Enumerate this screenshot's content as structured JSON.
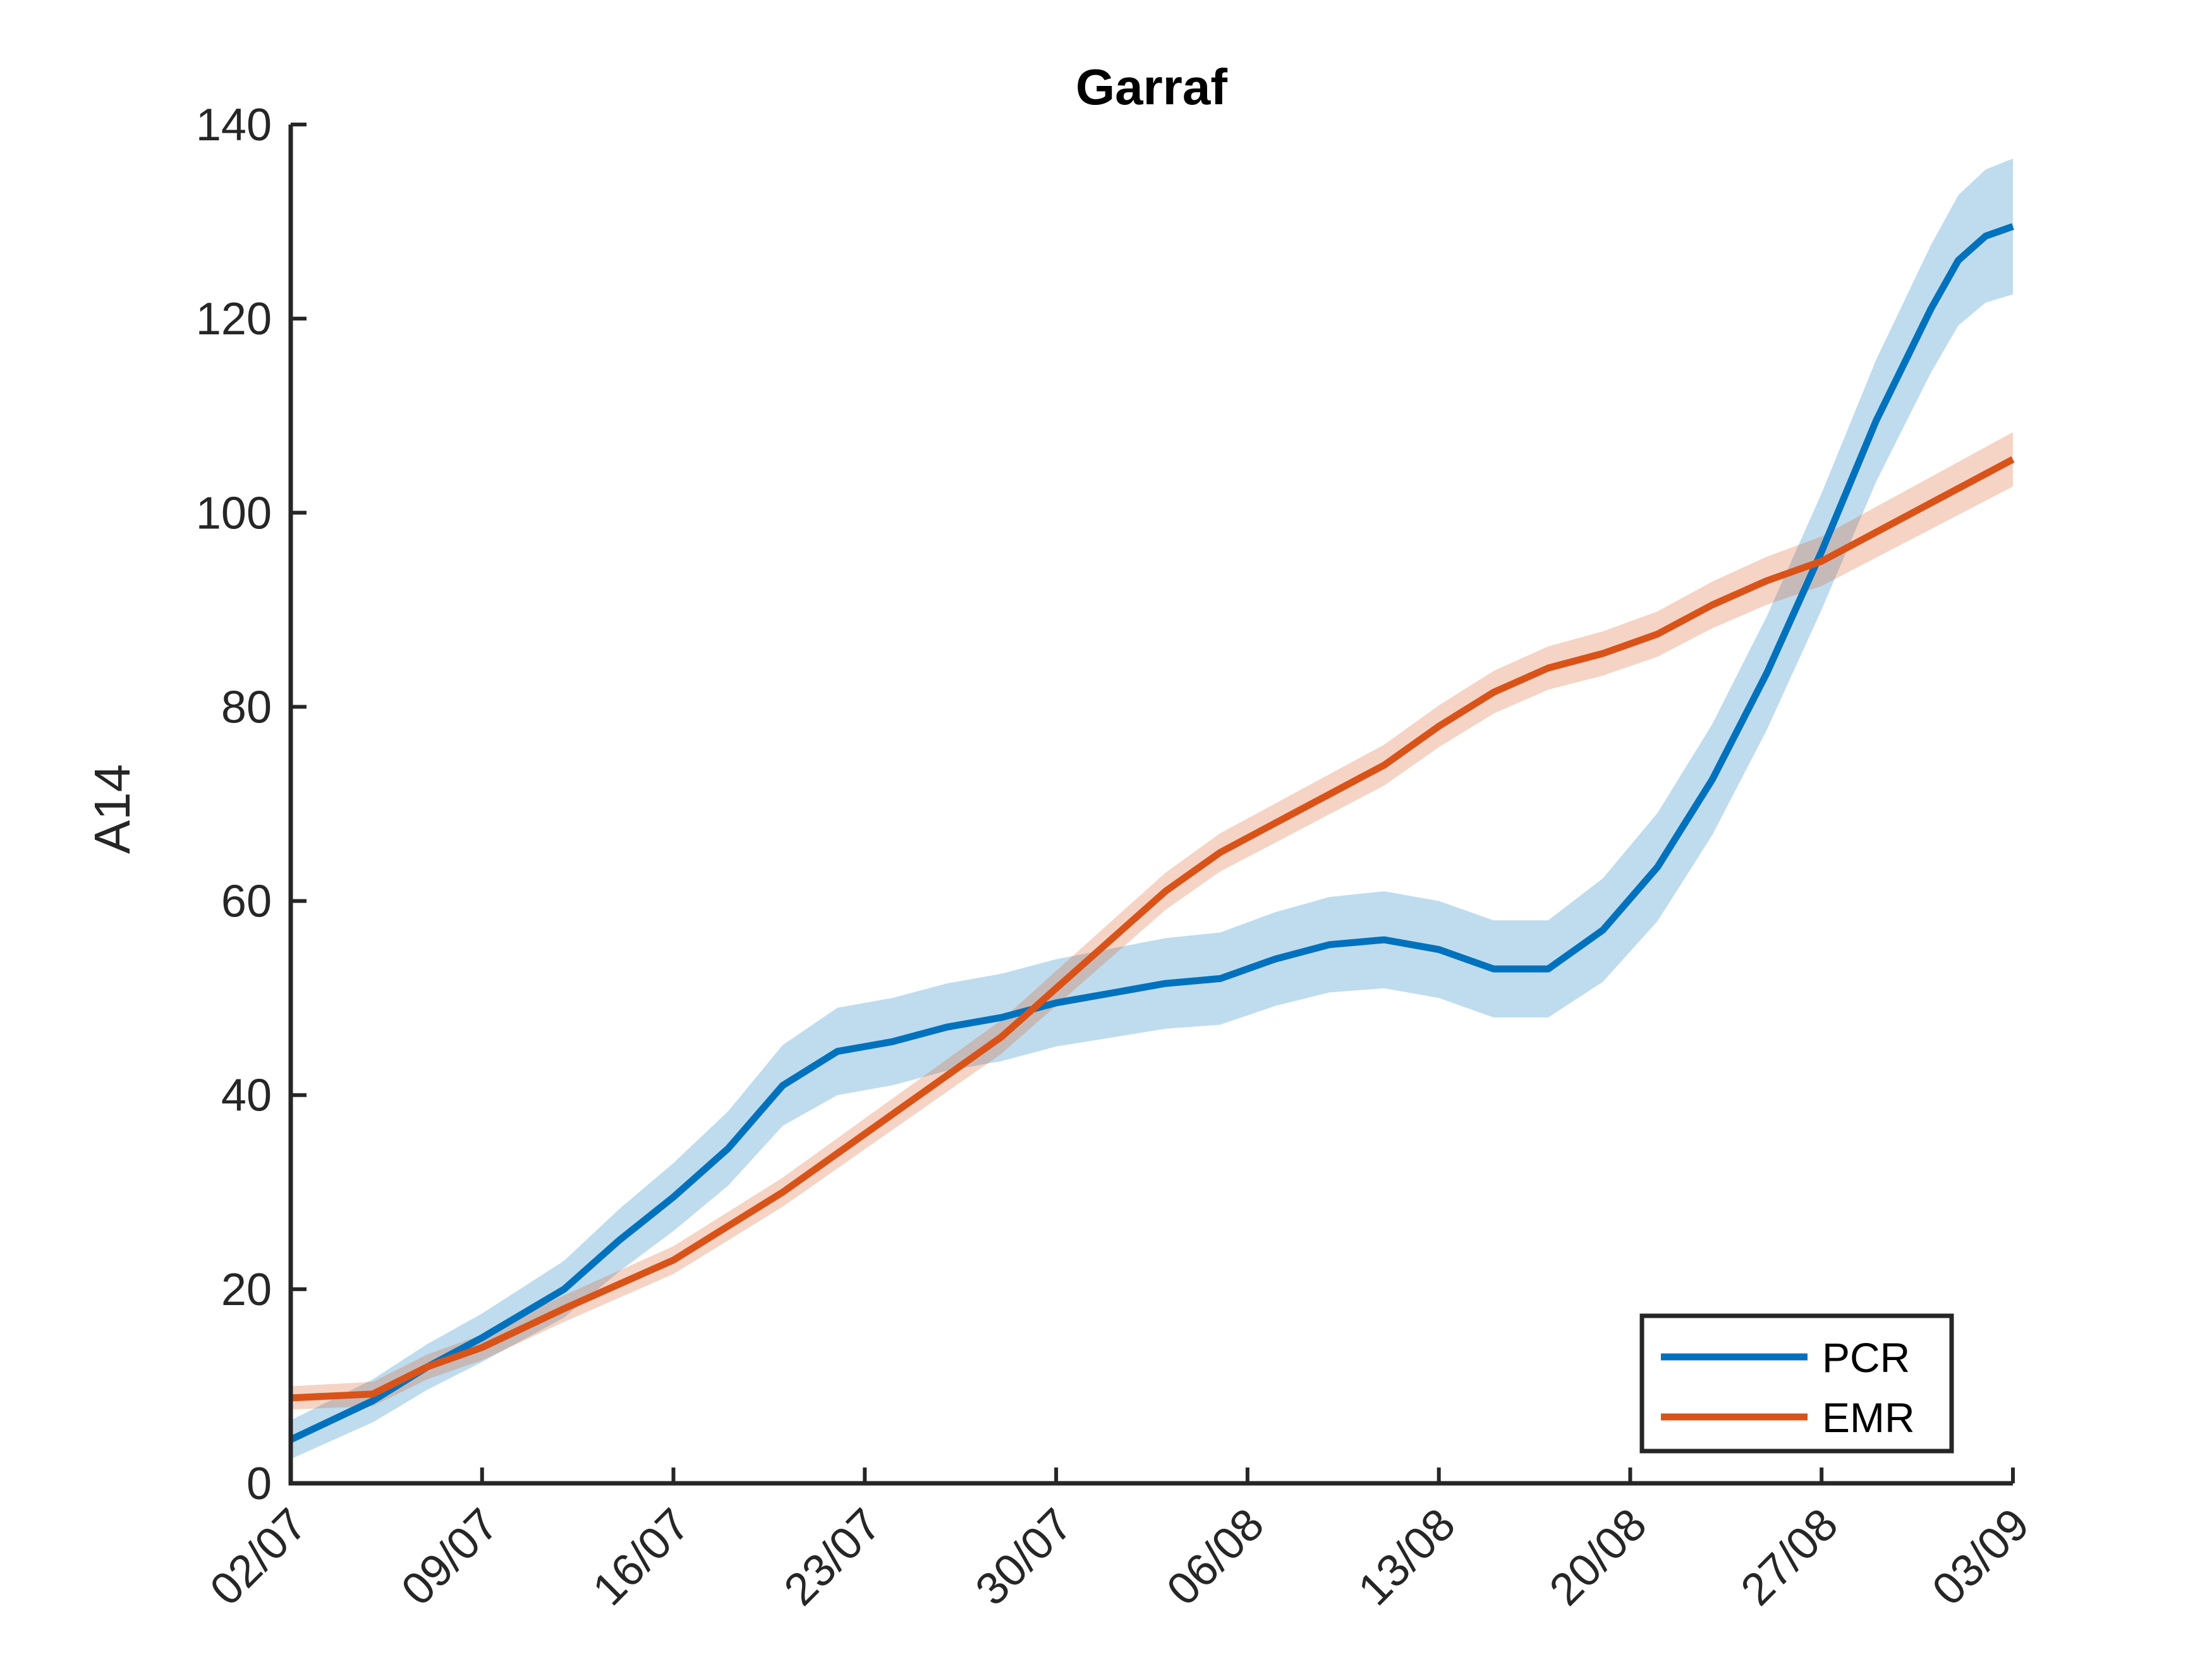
{
  "chart_data": {
    "type": "line",
    "title": "Garraf",
    "xlabel": "",
    "ylabel": "A14",
    "x_ticks": [
      "02/07",
      "09/07",
      "16/07",
      "23/07",
      "30/07",
      "06/08",
      "13/08",
      "20/08",
      "27/08",
      "03/09"
    ],
    "xlim": [
      "02/07",
      "03/09"
    ],
    "ylim": [
      0,
      140
    ],
    "y_ticks": [
      0,
      20,
      40,
      60,
      80,
      100,
      120,
      140
    ],
    "grid": false,
    "legend": "bottom-right",
    "series": [
      {
        "name": "PCR",
        "color": "#0072BD",
        "band_color": "#0072BD",
        "points": [
          [
            "02/07",
            4.5
          ],
          [
            "05/07",
            8.5
          ],
          [
            "07/07",
            12
          ],
          [
            "09/07",
            15
          ],
          [
            "12/07",
            20
          ],
          [
            "14/07",
            25
          ],
          [
            "16/07",
            29.5
          ],
          [
            "18/07",
            34.5
          ],
          [
            "20/07",
            41
          ],
          [
            "22/07",
            44.5
          ],
          [
            "24/07",
            45.5
          ],
          [
            "26/07",
            47
          ],
          [
            "28/07",
            48
          ],
          [
            "30/07",
            49.5
          ],
          [
            "01/08",
            50.5
          ],
          [
            "03/08",
            51.5
          ],
          [
            "05/08",
            52
          ],
          [
            "07/08",
            54
          ],
          [
            "09/08",
            55.5
          ],
          [
            "11/08",
            56
          ],
          [
            "13/08",
            55
          ],
          [
            "15/08",
            53
          ],
          [
            "17/08",
            53
          ],
          [
            "19/08",
            57
          ],
          [
            "21/08",
            63.5
          ],
          [
            "23/08",
            72.5
          ],
          [
            "25/08",
            83.5
          ],
          [
            "27/08",
            96
          ],
          [
            "29/08",
            109.5
          ],
          [
            "31/08",
            121
          ],
          [
            "01/09",
            126
          ],
          [
            "02/09",
            128.5
          ],
          [
            "03/09",
            129.5
          ]
        ],
        "band_halfwidth": [
          [
            "02/07",
            2
          ],
          [
            "09/07",
            2.5
          ],
          [
            "16/07",
            3.5
          ],
          [
            "22/07",
            4.5
          ],
          [
            "30/07",
            4.5
          ],
          [
            "11/08",
            5
          ],
          [
            "17/08",
            5
          ],
          [
            "20/08",
            5.5
          ],
          [
            "27/08",
            6
          ],
          [
            "03/09",
            7
          ]
        ]
      },
      {
        "name": "EMR",
        "color": "#D95319",
        "band_color": "#D95319",
        "points": [
          [
            "02/07",
            8.8
          ],
          [
            "05/07",
            9.2
          ],
          [
            "07/07",
            12
          ],
          [
            "09/07",
            14
          ],
          [
            "12/07",
            18
          ],
          [
            "14/07",
            20.5
          ],
          [
            "16/07",
            23
          ],
          [
            "18/07",
            26.5
          ],
          [
            "20/07",
            30
          ],
          [
            "22/07",
            34
          ],
          [
            "24/07",
            38
          ],
          [
            "26/07",
            42
          ],
          [
            "28/07",
            46
          ],
          [
            "30/07",
            51
          ],
          [
            "01/08",
            56
          ],
          [
            "03/08",
            61
          ],
          [
            "05/08",
            65
          ],
          [
            "07/08",
            68
          ],
          [
            "09/08",
            71
          ],
          [
            "11/08",
            74
          ],
          [
            "13/08",
            78
          ],
          [
            "15/08",
            81.5
          ],
          [
            "17/08",
            84
          ],
          [
            "19/08",
            85.5
          ],
          [
            "21/08",
            87.5
          ],
          [
            "23/08",
            90.5
          ],
          [
            "25/08",
            93
          ],
          [
            "27/08",
            95
          ],
          [
            "29/08",
            98
          ],
          [
            "31/08",
            101
          ],
          [
            "01/09",
            102.5
          ],
          [
            "02/09",
            104
          ],
          [
            "03/09",
            105.5
          ]
        ],
        "band_halfwidth": [
          [
            "02/07",
            1.2
          ],
          [
            "20/07",
            1.5
          ],
          [
            "06/08",
            2
          ],
          [
            "20/08",
            2.3
          ],
          [
            "03/09",
            2.8
          ]
        ]
      }
    ]
  }
}
